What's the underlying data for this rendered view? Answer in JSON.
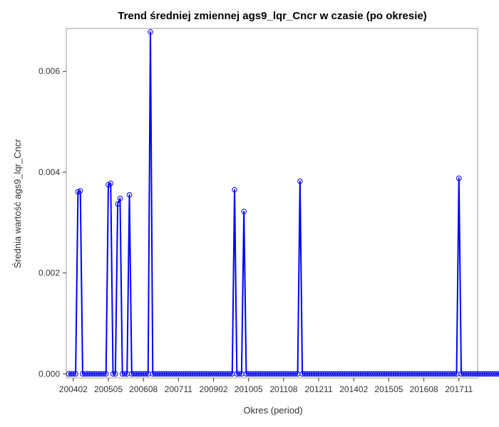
{
  "chart_data": {
    "type": "line",
    "title": "Trend średniej zmiennej ags9_lqr_Cncr w czasie (po okresie)",
    "xlabel": "Okres (period)",
    "ylabel": "Średnia wartość ags9_lqr_Cncr",
    "xlim": [
      "200311",
      "201807"
    ],
    "ylim": [
      -8e-05,
      0.00685
    ],
    "yticks": [
      0.0,
      0.002,
      0.004,
      0.006
    ],
    "ytick_labels": [
      "0.000",
      "0.002",
      "0.004",
      "0.006"
    ],
    "xtick_labels": [
      "200402",
      "200505",
      "200608",
      "200711",
      "200902",
      "201005",
      "201108",
      "201211",
      "201402",
      "201505",
      "201608",
      "201711"
    ],
    "grid": false,
    "legend": "none",
    "colors": {
      "line": "#0000ff",
      "marker": "#0000ff"
    },
    "marker": "circle",
    "series": [
      {
        "start": "200312",
        "end": "201806",
        "values": [
          0,
          0,
          0,
          0,
          0.00361,
          0.00363,
          0,
          0,
          0,
          0,
          0,
          0,
          0,
          0,
          0,
          0,
          0,
          0.00375,
          0.00378,
          0,
          0,
          0.00337,
          0.00348,
          0,
          0,
          0,
          0.00355,
          0,
          0,
          0,
          0,
          0,
          0,
          0,
          0,
          0.00678,
          0,
          0,
          0,
          0,
          0,
          0,
          0,
          0,
          0,
          0,
          0,
          0,
          0,
          0,
          0,
          0,
          0,
          0,
          0,
          0,
          0,
          0,
          0,
          0,
          0,
          0,
          0,
          0,
          0,
          0,
          0,
          0,
          0,
          0,
          0,
          0.00365,
          0,
          0,
          0,
          0.00322,
          0,
          0,
          0,
          0,
          0,
          0,
          0,
          0,
          0,
          0,
          0,
          0,
          0,
          0,
          0,
          0,
          0,
          0,
          0,
          0,
          0,
          0,
          0,
          0.00382,
          0,
          0,
          0,
          0,
          0,
          0,
          0,
          0,
          0,
          0,
          0,
          0,
          0,
          0,
          0,
          0,
          0,
          0,
          0,
          0,
          0,
          0,
          0,
          0,
          0,
          0,
          0,
          0,
          0,
          0,
          0,
          0,
          0,
          0,
          0,
          0,
          0,
          0,
          0,
          0,
          0,
          0,
          0,
          0,
          0,
          0,
          0,
          0,
          0,
          0,
          0,
          0,
          0,
          0,
          0,
          0,
          0,
          0,
          0,
          0,
          0,
          0,
          0,
          0,
          0,
          0,
          0,
          0.00388,
          0,
          0,
          0,
          0,
          0,
          0,
          0,
          0,
          0,
          0,
          0,
          0,
          0,
          0,
          0,
          0,
          0,
          0,
          0,
          0,
          0,
          0,
          0,
          0,
          0,
          0,
          0,
          0,
          0,
          0,
          0
        ]
      }
    ]
  }
}
